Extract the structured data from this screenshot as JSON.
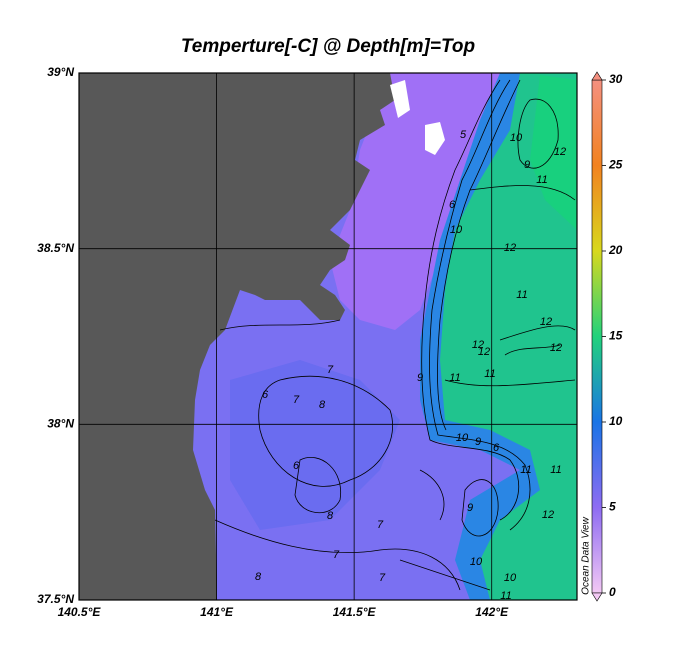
{
  "chart_data": {
    "type": "contour-map",
    "title": "Temperture[-C] @ Depth[m]=Top",
    "xlim": [
      140.5,
      142.31
    ],
    "ylim": [
      37.5,
      39
    ],
    "xticks": [
      {
        "value": 140.5,
        "label": "140.5°E"
      },
      {
        "value": 141,
        "label": "141°E"
      },
      {
        "value": 141.5,
        "label": "141.5°E"
      },
      {
        "value": 142,
        "label": "142°E"
      }
    ],
    "yticks": [
      {
        "value": 37.5,
        "label": "37.5°N"
      },
      {
        "value": 38,
        "label": "38°N"
      },
      {
        "value": 38.5,
        "label": "38.5°N"
      },
      {
        "value": 39,
        "label": "39°N"
      }
    ],
    "grid": true,
    "land_color": "#585858",
    "colorbar": {
      "lim": [
        0,
        30
      ],
      "ticks": [
        0,
        5,
        10,
        15,
        20,
        25,
        30
      ],
      "colors": [
        "#f2c8f4",
        "#8e6cf2",
        "#1a74e6",
        "#22d27c",
        "#d8d81e",
        "#f28220",
        "#f49080"
      ]
    },
    "watermark": "Ocean Data View",
    "contour_labels": [
      5,
      10,
      9,
      11,
      12,
      6,
      10,
      12,
      11,
      12,
      12,
      12,
      12,
      11,
      11,
      9,
      10,
      9,
      6,
      11,
      11,
      12,
      9,
      10,
      10,
      11,
      7,
      8,
      7,
      6,
      8,
      7,
      6,
      7,
      7,
      8
    ]
  }
}
